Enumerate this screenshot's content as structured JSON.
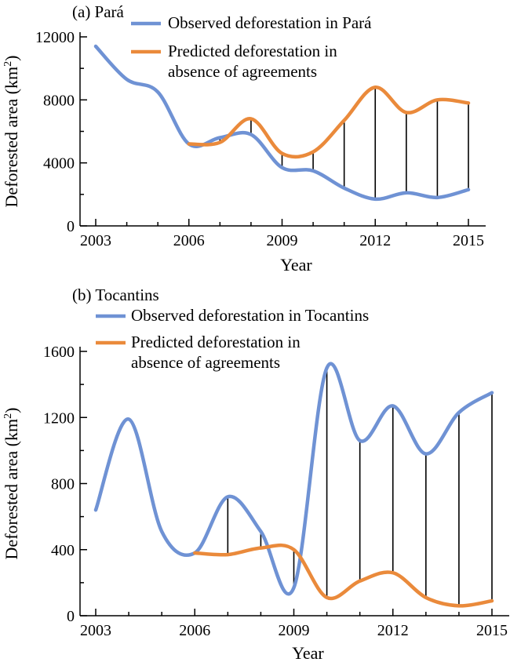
{
  "chart_data": [
    {
      "type": "line",
      "panel_title": "(a) Pará",
      "xlabel": "Year",
      "ylabel": "Deforested area (km²)",
      "ylabel_parts": {
        "main": "Deforested area (km",
        "sup": "2",
        "end": ")"
      },
      "xlim": [
        2003,
        2015
      ],
      "ylim": [
        0,
        12000
      ],
      "xticks": [
        2003,
        2006,
        2009,
        2012,
        2015
      ],
      "yticks": [
        0,
        4000,
        8000,
        12000
      ],
      "legend_position": "top",
      "series": [
        {
          "name_lines": [
            "Observed deforestation in Pará"
          ],
          "color": "#6f92d4",
          "x": [
            2003,
            2004,
            2005,
            2006,
            2007,
            2008,
            2009,
            2010,
            2011,
            2012,
            2013,
            2014,
            2015
          ],
          "y": [
            11400,
            9300,
            8500,
            5200,
            5600,
            5800,
            3700,
            3500,
            2400,
            1700,
            2100,
            1800,
            2300
          ]
        },
        {
          "name_lines": [
            "Predicted deforestation in",
            "absence of agreements"
          ],
          "color": "#ea8a3b",
          "x": [
            2006,
            2007,
            2008,
            2009,
            2010,
            2011,
            2012,
            2013,
            2014,
            2015
          ],
          "y": [
            5200,
            5300,
            6800,
            4600,
            4700,
            6700,
            8800,
            7200,
            8000,
            7800
          ]
        }
      ],
      "difference_lines_x": [
        2007,
        2008,
        2009,
        2010,
        2011,
        2012,
        2013,
        2014,
        2015
      ]
    },
    {
      "type": "line",
      "panel_title": "(b) Tocantins",
      "xlabel": "Year",
      "ylabel": "Deforested area (km²)",
      "ylabel_parts": {
        "main": "Deforested area (km",
        "sup": "2",
        "end": ")"
      },
      "xlim": [
        2003,
        2015
      ],
      "ylim": [
        0,
        1600
      ],
      "xticks": [
        2003,
        2006,
        2009,
        2012,
        2015
      ],
      "yticks": [
        0,
        400,
        800,
        1200,
        1600
      ],
      "legend_position": "top",
      "series": [
        {
          "name_lines": [
            "Observed deforestation in Tocantins"
          ],
          "color": "#6f92d4",
          "x": [
            2003,
            2004,
            2005,
            2006,
            2007,
            2008,
            2009,
            2010,
            2011,
            2012,
            2013,
            2014,
            2015
          ],
          "y": [
            640,
            1190,
            510,
            380,
            720,
            510,
            170,
            1500,
            1060,
            1270,
            980,
            1230,
            1350
          ]
        },
        {
          "name_lines": [
            "Predicted deforestation in",
            "absence of agreements"
          ],
          "color": "#ea8a3b",
          "x": [
            2006,
            2007,
            2008,
            2009,
            2010,
            2011,
            2012,
            2013,
            2014,
            2015
          ],
          "y": [
            380,
            370,
            410,
            400,
            110,
            210,
            260,
            110,
            60,
            90
          ]
        }
      ],
      "difference_lines_x": [
        2007,
        2008,
        2009,
        2010,
        2011,
        2012,
        2013,
        2014,
        2015
      ]
    }
  ]
}
